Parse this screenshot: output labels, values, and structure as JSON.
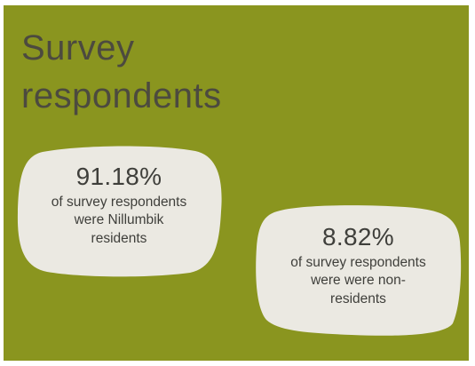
{
  "colors": {
    "background": "#8a951f",
    "blob_fill": "#ebe9e2",
    "title_text": "#4c4a3f",
    "body_text": "#3f3f3b"
  },
  "title_lines": [
    "Survey",
    "respondents"
  ],
  "stats": [
    {
      "percent": "91.18%",
      "caption_lines": [
        "of survey respondents",
        "were Nillumbik",
        "residents"
      ]
    },
    {
      "percent": "8.82%",
      "caption_lines": [
        "of survey respondents",
        "were were non-",
        "residents"
      ]
    }
  ]
}
